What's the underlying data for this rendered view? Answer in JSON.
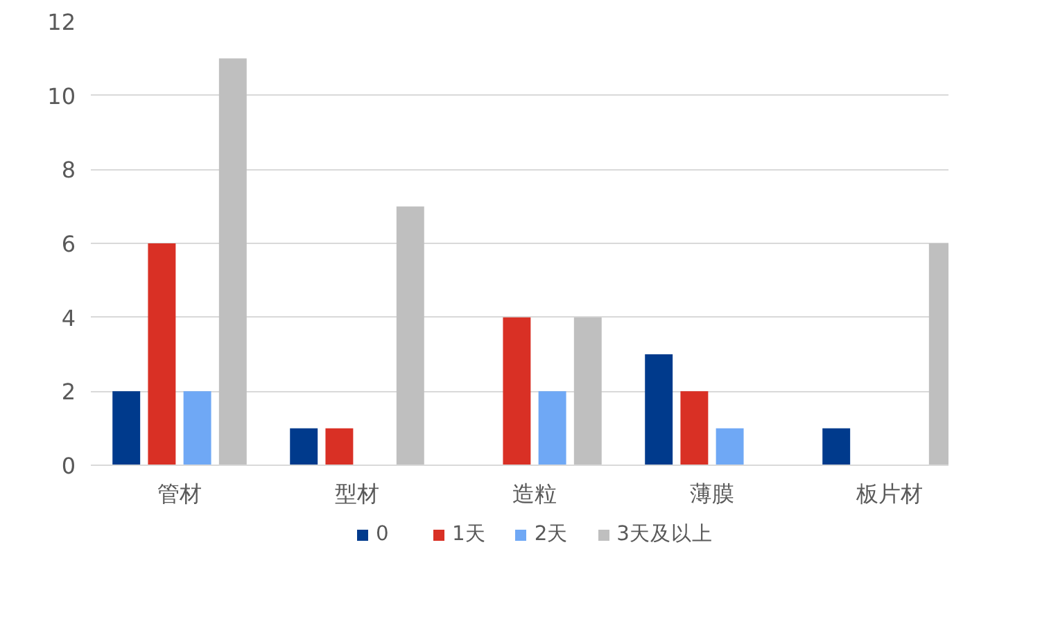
{
  "chart_data": {
    "type": "bar",
    "categories": [
      "管材",
      "型材",
      "造粒",
      "薄膜",
      "板片材"
    ],
    "series": [
      {
        "name": "0",
        "color": "#003a8c",
        "values": [
          2,
          1,
          0,
          3,
          1
        ]
      },
      {
        "name": "1天",
        "color": "#d93025",
        "values": [
          6,
          1,
          4,
          2,
          0
        ]
      },
      {
        "name": "2天",
        "color": "#6fa8f5",
        "values": [
          2,
          0,
          2,
          1,
          0
        ]
      },
      {
        "name": "3天及以上",
        "color": "#bfbfbf",
        "values": [
          11,
          7,
          4,
          0,
          6
        ]
      }
    ],
    "ylim": [
      0,
      12
    ],
    "yticks": [
      0,
      2,
      4,
      6,
      8,
      10,
      12
    ],
    "grid": "y",
    "legend": "bottom"
  }
}
